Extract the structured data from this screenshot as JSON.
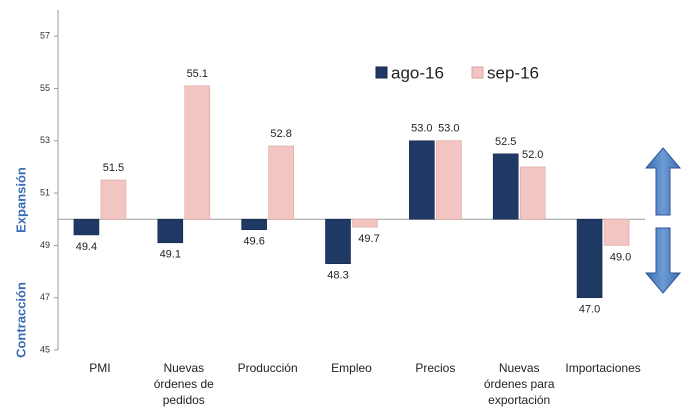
{
  "chart_data": {
    "type": "bar",
    "categories": [
      "PMI",
      "Nuevas órdenes de pedidos",
      "Producción",
      "Empleo",
      "Precios",
      "Nuevas órdenes para exportación",
      "Importaciones"
    ],
    "series": [
      {
        "name": "ago-16",
        "color": "#1f3864",
        "values": [
          49.4,
          49.1,
          49.6,
          48.3,
          53.0,
          52.5,
          47.0
        ],
        "value_labels": [
          "49.4",
          "49.1",
          "49.6",
          "48.3",
          "53.0",
          "52.5",
          "47.0"
        ]
      },
      {
        "name": "sep-16",
        "color": "#f2c4c2",
        "values": [
          51.5,
          55.1,
          52.8,
          49.7,
          53.0,
          52.0,
          49.0
        ],
        "value_labels": [
          "51.5",
          "55.1",
          "52.8",
          "49.7",
          "53.0",
          "52.0",
          "49.0"
        ]
      }
    ],
    "baseline": 50,
    "ylim": [
      45,
      58
    ],
    "yticks": [
      45,
      47,
      49,
      51,
      53,
      55,
      57
    ],
    "annotations": [
      "Expansión",
      "Contracción"
    ]
  }
}
